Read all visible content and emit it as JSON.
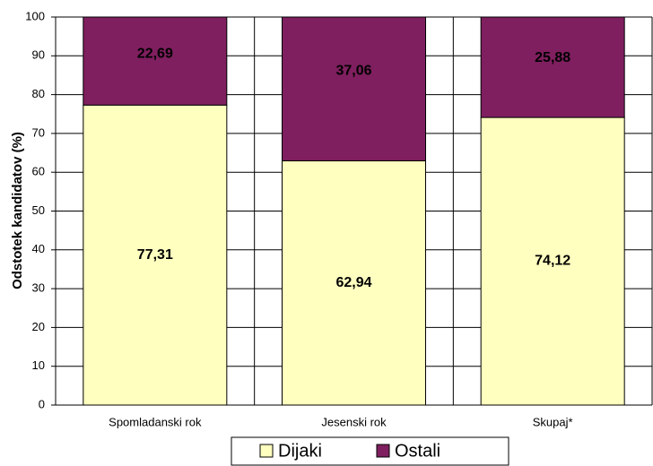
{
  "chart_data": {
    "type": "stacked_bar",
    "y_label": "Odstotek kandidatov (%)",
    "categories": [
      "Spomladanski rok",
      "Jesenski rok",
      "Skupaj*"
    ],
    "series": [
      {
        "name": "Dijaki",
        "color": "#ffffc0",
        "values": [
          77.31,
          62.94,
          74.12
        ],
        "value_labels": [
          "77,31",
          "62,94",
          "74,12"
        ]
      },
      {
        "name": "Ostali",
        "color": "#7f1f5f",
        "values": [
          22.69,
          37.06,
          25.88
        ],
        "value_labels": [
          "22,69",
          "37,06",
          "25,88"
        ]
      }
    ],
    "ylim": [
      0,
      100
    ],
    "yticks": [
      0,
      10,
      20,
      30,
      40,
      50,
      60,
      70,
      80,
      90,
      100
    ],
    "grid": true,
    "legend": "bottom"
  }
}
